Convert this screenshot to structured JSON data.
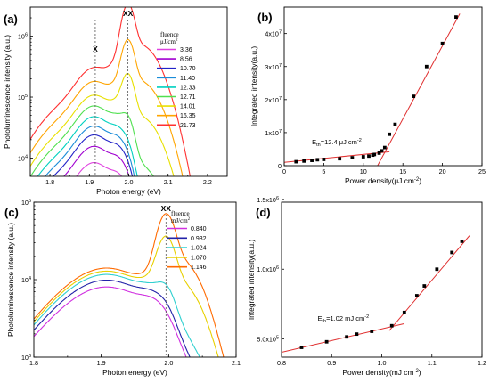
{
  "chart_data": [
    {
      "panel": "(a)",
      "type": "line",
      "xlabel": "Photon energy (eV)",
      "ylabel": "Photoluminescence intensity (a.u.)",
      "xlim": [
        1.75,
        2.25
      ],
      "ylim_log": [
        5000,
        3000000
      ],
      "xticks": [
        "1.8",
        "1.9",
        "2.0",
        "2.1",
        "2.2"
      ],
      "yticks": [
        {
          "base": "10",
          "exp": "4",
          "value": 10000
        },
        {
          "base": "10",
          "exp": "5",
          "value": 100000
        },
        {
          "base": "10",
          "exp": "6",
          "value": 1000000
        }
      ],
      "annotations": [
        {
          "text": "X",
          "x": 1.915
        },
        {
          "text": "XX",
          "x": 1.998
        }
      ],
      "legend_title_line1": "fluence",
      "legend_title_line2": "μJ/cm",
      "legend_title_sup": "2",
      "series": [
        {
          "name": "3.36",
          "color": "#e040e0",
          "x_peak": 7000,
          "xx_peak": 500
        },
        {
          "name": "8.56",
          "color": "#a000d0",
          "x_peak": 13000,
          "xx_peak": 900
        },
        {
          "name": "10.70",
          "color": "#2222c8",
          "x_peak": 20000,
          "xx_peak": 1500
        },
        {
          "name": "11.40",
          "color": "#1a8cd8",
          "x_peak": 28000,
          "xx_peak": 2200
        },
        {
          "name": "12.33",
          "color": "#00d0c0",
          "x_peak": 40000,
          "xx_peak": 5000
        },
        {
          "name": "12.71",
          "color": "#50e050",
          "x_peak": 60000,
          "xx_peak": 25000
        },
        {
          "name": "14.01",
          "color": "#e8e000",
          "x_peak": 90000,
          "xx_peak": 180000
        },
        {
          "name": "16.35",
          "color": "#ffa500",
          "x_peak": 150000,
          "xx_peak": 700000
        },
        {
          "name": "21.73",
          "color": "#ff3030",
          "x_peak": 250000,
          "xx_peak": 2800000
        }
      ]
    },
    {
      "panel": "(b)",
      "type": "scatter",
      "xlabel": "Power density(μJ cm",
      "xlabel_sup": "-2",
      "xlabel_end": ")",
      "ylabel": "Integrated intensity(a.u.)",
      "xlim": [
        0,
        25
      ],
      "ylim": [
        0,
        4.8
      ],
      "xticks": [
        "0",
        "5",
        "10",
        "15",
        "20",
        "25"
      ],
      "yticks": [
        {
          "base": "0",
          "exp": "",
          "value": 0
        },
        {
          "base": "1x10",
          "exp": "7",
          "value": 1
        },
        {
          "base": "2x10",
          "exp": "7",
          "value": 2
        },
        {
          "base": "3x10",
          "exp": "7",
          "value": 3
        },
        {
          "base": "4x10",
          "exp": "7",
          "value": 4
        }
      ],
      "threshold_label": "E",
      "threshold_sub": "th",
      "threshold_value": "=12.4 μJ cm",
      "threshold_sup": "-2",
      "points_x": [
        1.5,
        2.5,
        3.5,
        4.2,
        5.0,
        7.0,
        8.6,
        10.0,
        10.7,
        11.2,
        11.4,
        12.0,
        12.33,
        12.71,
        13.3,
        14.01,
        16.35,
        18.0,
        20.0,
        21.73
      ],
      "points_y": [
        0.12,
        0.14,
        0.16,
        0.18,
        0.19,
        0.21,
        0.24,
        0.27,
        0.29,
        0.32,
        0.34,
        0.38,
        0.45,
        0.55,
        0.95,
        1.25,
        2.1,
        3.0,
        3.7,
        4.5
      ],
      "fit_low": [
        [
          0,
          0.1
        ],
        [
          13.3,
          0.42
        ]
      ],
      "fit_high": [
        [
          11.8,
          0.0
        ],
        [
          22.2,
          4.6
        ]
      ]
    },
    {
      "panel": "(c)",
      "type": "line",
      "xlabel": "Photon energy (eV)",
      "ylabel": "Photoluminescence intensity (a.u.)",
      "xlim": [
        1.8,
        2.1
      ],
      "ylim_log": [
        1000,
        100000
      ],
      "xticks": [
        "1.8",
        "1.9",
        "2.0",
        "2.1"
      ],
      "yticks": [
        {
          "base": "10",
          "exp": "3",
          "value": 1000
        },
        {
          "base": "10",
          "exp": "4",
          "value": 10000
        },
        {
          "base": "10",
          "exp": "5",
          "value": 100000
        }
      ],
      "annotations": [
        {
          "text": "XX",
          "x": 1.996
        }
      ],
      "legend_title_line1": "fluence",
      "legend_title_line2": "mJ/cm",
      "legend_title_sup": "2",
      "series": [
        {
          "name": "0.840",
          "color": "#d030e0",
          "x_peak": 6500,
          "xx_peak": 150
        },
        {
          "name": "0.932",
          "color": "#2222a8",
          "x_peak": 8000,
          "xx_peak": 500
        },
        {
          "name": "1.024",
          "color": "#30d0d0",
          "x_peak": 9500,
          "xx_peak": 2800
        },
        {
          "name": "1.070",
          "color": "#e8d000",
          "x_peak": 10500,
          "xx_peak": 26000
        },
        {
          "name": "1.146",
          "color": "#ff6a00",
          "x_peak": 11500,
          "xx_peak": 55000
        }
      ]
    },
    {
      "panel": "(d)",
      "type": "scatter",
      "xlabel": "Power density(mJ cm",
      "xlabel_sup": "-2",
      "xlabel_end": ")",
      "ylabel": "Integrated intensity(a.u.)",
      "xlim": [
        0.8,
        1.2
      ],
      "ylim": [
        3.7,
        14.8
      ],
      "xticks": [
        "0.8",
        "0.9",
        "1.0",
        "1.1",
        "1.2"
      ],
      "yticks": [
        {
          "base": "5.0x10",
          "exp": "5",
          "value": 5.0
        },
        {
          "base": "1.0x10",
          "exp": "6",
          "value": 10.0
        },
        {
          "base": "1.5x10",
          "exp": "6",
          "value": 15.0
        }
      ],
      "threshold_label": "E",
      "threshold_sub": "th",
      "threshold_value": "=1.02 mJ cm",
      "threshold_sup": "-2",
      "points_x": [
        0.84,
        0.89,
        0.93,
        0.95,
        0.98,
        1.02,
        1.045,
        1.07,
        1.085,
        1.11,
        1.14,
        1.16
      ],
      "points_y": [
        4.4,
        4.8,
        5.15,
        5.35,
        5.55,
        5.95,
        6.9,
        8.1,
        8.8,
        10.0,
        11.2,
        12.0
      ],
      "fit_low": [
        [
          0.8,
          4.05
        ],
        [
          1.045,
          6.1
        ]
      ],
      "fit_high": [
        [
          1.015,
          5.6
        ],
        [
          1.175,
          12.4
        ]
      ]
    }
  ]
}
